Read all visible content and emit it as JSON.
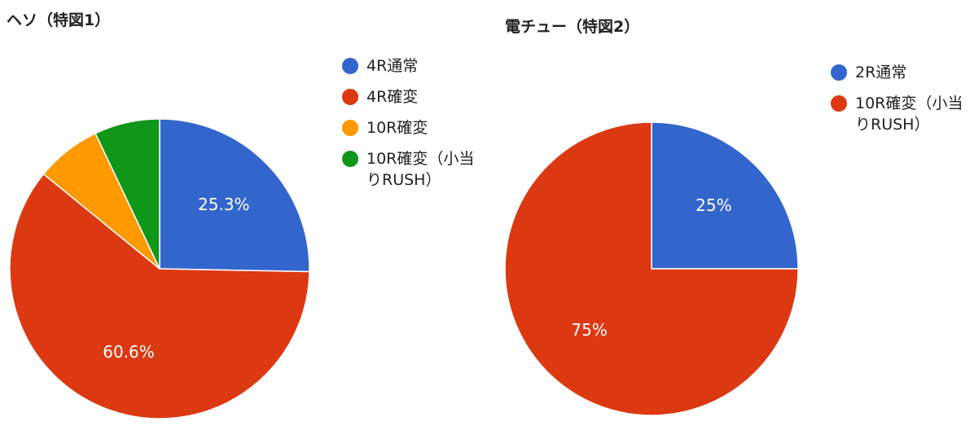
{
  "chart_data": [
    {
      "type": "pie",
      "title": "ヘソ（特図1）",
      "categories": [
        "4R通常",
        "4R確変",
        "10R確変",
        "10R確変（小当りRUSH）"
      ],
      "legend": [
        "4R通常",
        "4R確変",
        "10R確変",
        "10R確変（小当りRUSH）"
      ],
      "values": [
        25.3,
        60.6,
        7.05,
        7.05
      ],
      "labels": [
        "25.3%",
        "60.6%",
        "",
        ""
      ],
      "colors": [
        "#3366cc",
        "#dc3912",
        "#ff9900",
        "#109618"
      ],
      "legend_position": "right"
    },
    {
      "type": "pie",
      "title": "電チュー（特図2）",
      "categories": [
        "2R通常",
        "10R確変（小当りRUSH）"
      ],
      "legend": [
        "2R通常",
        "10R確変（小当りRUSH）"
      ],
      "values": [
        25,
        75
      ],
      "labels": [
        "25%",
        "75%"
      ],
      "colors": [
        "#3366cc",
        "#dc3912"
      ],
      "legend_position": "right"
    }
  ]
}
